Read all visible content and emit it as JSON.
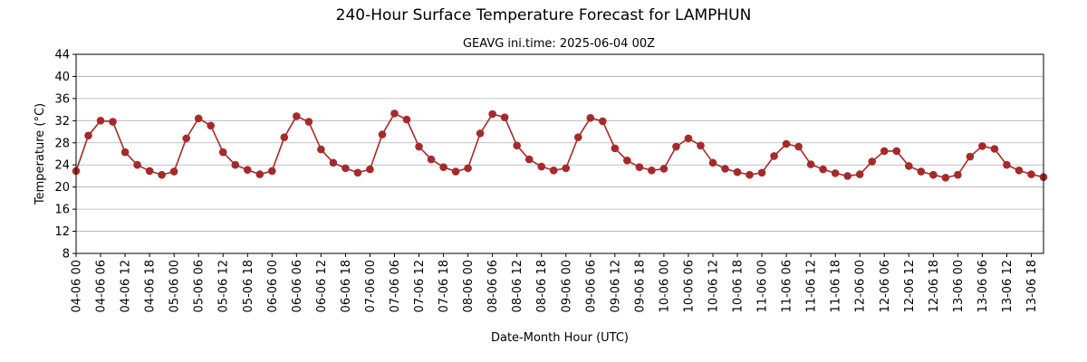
{
  "chart_data": {
    "type": "line",
    "title": "240-Hour Surface Temperature Forecast for LAMPHUN",
    "subtitle": "GEAVG ini.time: 2025-06-04 00Z",
    "xlabel": "Date-Month Hour (UTC)",
    "ylabel": "Temperature (°C)",
    "ylim": [
      8,
      44
    ],
    "yticks": [
      8,
      12,
      16,
      20,
      24,
      28,
      32,
      36,
      40,
      44
    ],
    "grid": "horizontal",
    "line_color": "#a52a2a",
    "x_step_hours": 3,
    "xtick_labels": [
      "04-06 00",
      "04-06 06",
      "04-06 12",
      "04-06 18",
      "05-06 00",
      "05-06 06",
      "05-06 12",
      "05-06 18",
      "06-06 00",
      "06-06 06",
      "06-06 12",
      "06-06 18",
      "07-06 00",
      "07-06 06",
      "07-06 12",
      "07-06 18",
      "08-06 00",
      "08-06 06",
      "08-06 12",
      "08-06 18",
      "09-06 00",
      "09-06 06",
      "09-06 12",
      "09-06 18",
      "10-06 00",
      "10-06 06",
      "10-06 12",
      "10-06 18",
      "11-06 00",
      "11-06 06",
      "11-06 12",
      "11-06 18",
      "12-06 00",
      "12-06 06",
      "12-06 12",
      "12-06 18",
      "13-06 00",
      "13-06 06",
      "13-06 12",
      "13-06 18"
    ],
    "series": [
      {
        "values": [
          22.9,
          29.3,
          32.0,
          31.8,
          26.3,
          24.0,
          22.9,
          22.2,
          22.8,
          28.8,
          32.4,
          31.1,
          26.3,
          24.0,
          23.1,
          22.3,
          22.9,
          29.0,
          32.8,
          31.8,
          26.8,
          24.4,
          23.4,
          22.6,
          23.2,
          29.5,
          33.3,
          32.2,
          27.3,
          25.0,
          23.6,
          22.8,
          23.4,
          29.7,
          33.2,
          32.6,
          27.5,
          25.0,
          23.7,
          23.0,
          23.4,
          29.0,
          32.5,
          31.9,
          27.0,
          24.8,
          23.6,
          23.0,
          23.3,
          27.3,
          28.8,
          27.5,
          24.4,
          23.3,
          22.7,
          22.2,
          22.6,
          25.6,
          27.8,
          27.3,
          24.1,
          23.2,
          22.5,
          22.0,
          22.3,
          24.6,
          26.5,
          26.5,
          23.8,
          22.8,
          22.2,
          21.7,
          22.2,
          25.5,
          27.4,
          26.9,
          24.0,
          23.0,
          22.3,
          21.8
        ]
      }
    ]
  }
}
